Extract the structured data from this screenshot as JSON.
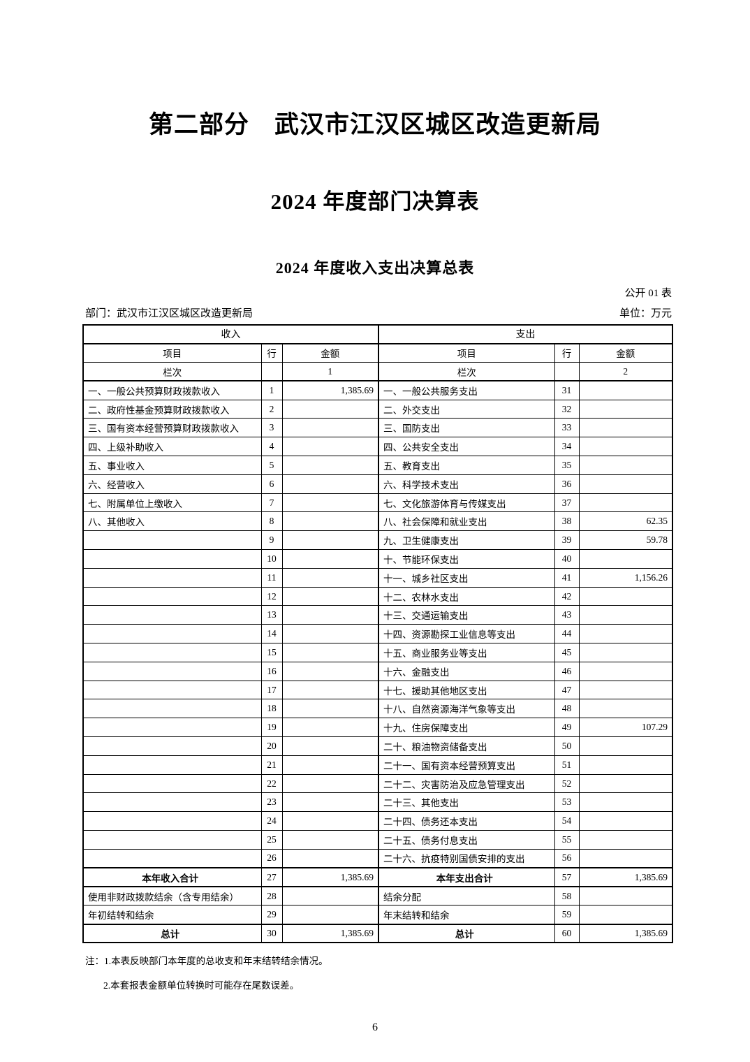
{
  "page": {
    "part_title": "第二部分　武汉市江汉区城区改造更新局",
    "doc_title": "2024 年度部门决算表",
    "table_title": "2024 年度收入支出决算总表",
    "table_code": "公开 01 表",
    "department_label": "部门：武汉市江汉区城区改造更新局",
    "unit_label": "单位：万元",
    "note1": "注：1.本表反映部门本年度的总收支和年末结转结余情况。",
    "note2": "2.本套报表金额单位转换时可能存在尾数误差。",
    "page_number": "6"
  },
  "table": {
    "income_header": "收入",
    "expense_header": "支出",
    "col_item": "项目",
    "col_line": "行",
    "col_amount": "金额",
    "col_index_label": "栏次",
    "income_col_index": "1",
    "expense_col_index": "2",
    "rows": [
      {
        "left_item": "一、一般公共预算财政拨款收入",
        "left_line": "1",
        "left_amount": "1,385.69",
        "right_item": "一、一般公共服务支出",
        "right_line": "31",
        "right_amount": "",
        "emphasis": false
      },
      {
        "left_item": "二、政府性基金预算财政拨款收入",
        "left_line": "2",
        "left_amount": "",
        "right_item": "二、外交支出",
        "right_line": "32",
        "right_amount": "",
        "emphasis": false
      },
      {
        "left_item": "三、国有资本经营预算财政拨款收入",
        "left_line": "3",
        "left_amount": "",
        "right_item": "三、国防支出",
        "right_line": "33",
        "right_amount": "",
        "emphasis": false
      },
      {
        "left_item": "四、上级补助收入",
        "left_line": "4",
        "left_amount": "",
        "right_item": "四、公共安全支出",
        "right_line": "34",
        "right_amount": "",
        "emphasis": false
      },
      {
        "left_item": "五、事业收入",
        "left_line": "5",
        "left_amount": "",
        "right_item": "五、教育支出",
        "right_line": "35",
        "right_amount": "",
        "emphasis": false
      },
      {
        "left_item": "六、经营收入",
        "left_line": "6",
        "left_amount": "",
        "right_item": "六、科学技术支出",
        "right_line": "36",
        "right_amount": "",
        "emphasis": false
      },
      {
        "left_item": "七、附属单位上缴收入",
        "left_line": "7",
        "left_amount": "",
        "right_item": "七、文化旅游体育与传媒支出",
        "right_line": "37",
        "right_amount": "",
        "emphasis": false
      },
      {
        "left_item": "八、其他收入",
        "left_line": "8",
        "left_amount": "",
        "right_item": "八、社会保障和就业支出",
        "right_line": "38",
        "right_amount": "62.35",
        "emphasis": false
      },
      {
        "left_item": "",
        "left_line": "9",
        "left_amount": "",
        "right_item": "九、卫生健康支出",
        "right_line": "39",
        "right_amount": "59.78",
        "emphasis": false
      },
      {
        "left_item": "",
        "left_line": "10",
        "left_amount": "",
        "right_item": "十、节能环保支出",
        "right_line": "40",
        "right_amount": "",
        "emphasis": false
      },
      {
        "left_item": "",
        "left_line": "11",
        "left_amount": "",
        "right_item": "十一、城乡社区支出",
        "right_line": "41",
        "right_amount": "1,156.26",
        "emphasis": false
      },
      {
        "left_item": "",
        "left_line": "12",
        "left_amount": "",
        "right_item": "十二、农林水支出",
        "right_line": "42",
        "right_amount": "",
        "emphasis": false
      },
      {
        "left_item": "",
        "left_line": "13",
        "left_amount": "",
        "right_item": "十三、交通运输支出",
        "right_line": "43",
        "right_amount": "",
        "emphasis": false
      },
      {
        "left_item": "",
        "left_line": "14",
        "left_amount": "",
        "right_item": "十四、资源勘探工业信息等支出",
        "right_line": "44",
        "right_amount": "",
        "emphasis": false
      },
      {
        "left_item": "",
        "left_line": "15",
        "left_amount": "",
        "right_item": "十五、商业服务业等支出",
        "right_line": "45",
        "right_amount": "",
        "emphasis": false
      },
      {
        "left_item": "",
        "left_line": "16",
        "left_amount": "",
        "right_item": "十六、金融支出",
        "right_line": "46",
        "right_amount": "",
        "emphasis": false
      },
      {
        "left_item": "",
        "left_line": "17",
        "left_amount": "",
        "right_item": "十七、援助其他地区支出",
        "right_line": "47",
        "right_amount": "",
        "emphasis": false
      },
      {
        "left_item": "",
        "left_line": "18",
        "left_amount": "",
        "right_item": "十八、自然资源海洋气象等支出",
        "right_line": "48",
        "right_amount": "",
        "emphasis": false
      },
      {
        "left_item": "",
        "left_line": "19",
        "left_amount": "",
        "right_item": "十九、住房保障支出",
        "right_line": "49",
        "right_amount": "107.29",
        "emphasis": false
      },
      {
        "left_item": "",
        "left_line": "20",
        "left_amount": "",
        "right_item": "二十、粮油物资储备支出",
        "right_line": "50",
        "right_amount": "",
        "emphasis": false
      },
      {
        "left_item": "",
        "left_line": "21",
        "left_amount": "",
        "right_item": "二十一、国有资本经营预算支出",
        "right_line": "51",
        "right_amount": "",
        "emphasis": false
      },
      {
        "left_item": "",
        "left_line": "22",
        "left_amount": "",
        "right_item": "二十二、灾害防治及应急管理支出",
        "right_line": "52",
        "right_amount": "",
        "emphasis": false
      },
      {
        "left_item": "",
        "left_line": "23",
        "left_amount": "",
        "right_item": "二十三、其他支出",
        "right_line": "53",
        "right_amount": "",
        "emphasis": false
      },
      {
        "left_item": "",
        "left_line": "24",
        "left_amount": "",
        "right_item": "二十四、债务还本支出",
        "right_line": "54",
        "right_amount": "",
        "emphasis": false
      },
      {
        "left_item": "",
        "left_line": "25",
        "left_amount": "",
        "right_item": "二十五、债务付息支出",
        "right_line": "55",
        "right_amount": "",
        "emphasis": false
      },
      {
        "left_item": "",
        "left_line": "26",
        "left_amount": "",
        "right_item": "二十六、抗疫特别国债安排的支出",
        "right_line": "56",
        "right_amount": "",
        "emphasis": false
      },
      {
        "left_item": "本年收入合计",
        "left_line": "27",
        "left_amount": "1,385.69",
        "right_item": "本年支出合计",
        "right_line": "57",
        "right_amount": "1,385.69",
        "emphasis": true
      },
      {
        "left_item": "使用非财政拨款结余（含专用结余）",
        "left_line": "28",
        "left_amount": "",
        "right_item": "结余分配",
        "right_line": "58",
        "right_amount": "",
        "emphasis": false
      },
      {
        "left_item": "年初结转和结余",
        "left_line": "29",
        "left_amount": "",
        "right_item": "年末结转和结余",
        "right_line": "59",
        "right_amount": "",
        "emphasis": false
      },
      {
        "left_item": "总计",
        "left_line": "30",
        "left_amount": "1,385.69",
        "right_item": "总计",
        "right_line": "60",
        "right_amount": "1,385.69",
        "emphasis": true
      }
    ]
  }
}
